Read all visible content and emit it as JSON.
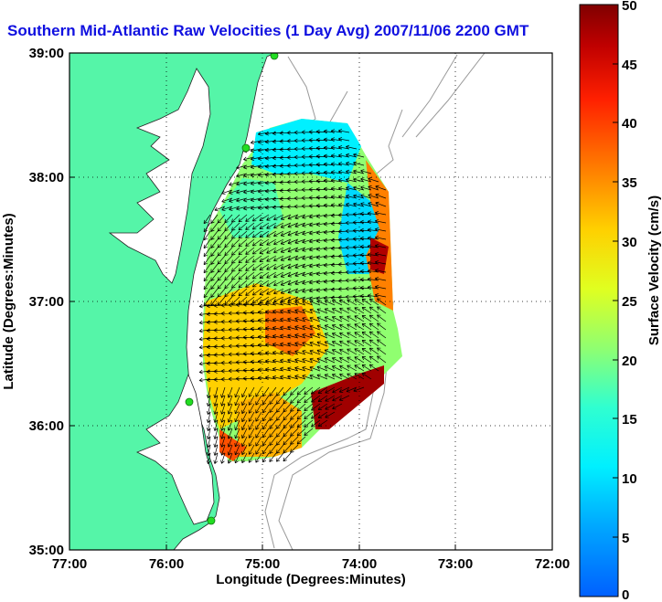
{
  "title": "Southern Mid-Atlantic Raw Velocities (1 Day Avg) 2007/11/06 2200 GMT",
  "xaxis": {
    "label": "Longitude (Degrees:Minutes)",
    "ticks": [
      "77:00",
      "76:00",
      "75:00",
      "74:00",
      "73:00",
      "72:00"
    ]
  },
  "yaxis": {
    "label": "Latitude (Degrees:Minutes)",
    "ticks": [
      "39:00",
      "38:00",
      "37:00",
      "36:00",
      "35:00"
    ]
  },
  "colorbar": {
    "label": "Surface Velocity (cm/s)",
    "ticks": [
      "50",
      "45",
      "40",
      "35",
      "30",
      "25",
      "20",
      "15",
      "10",
      "5",
      "0"
    ],
    "range": [
      0,
      50
    ]
  },
  "colors": {
    "land": "#55f5a8",
    "title": "#1010e0",
    "bathymetry": "#999999",
    "station": "#22dd22"
  }
}
